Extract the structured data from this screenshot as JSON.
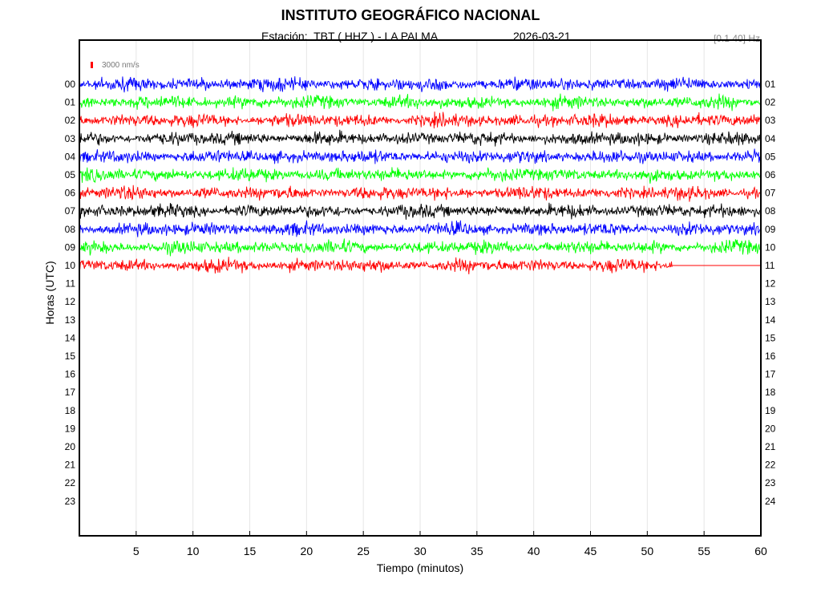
{
  "title": "INSTITUTO GEOGRÁFICO NACIONAL",
  "station_label": "Estación:  TBT ( HHZ ) - LA PALMA",
  "date": "2026-03-21",
  "filter_label": "[0.1 40] Hz",
  "scale_label": "3000 nm/s",
  "colors": {
    "blue": "#0000ff",
    "green": "#00ff00",
    "red": "#ff0000",
    "black": "#000000",
    "grid": "#e6e6e6",
    "scale": "#ff0000"
  },
  "chart_data": {
    "type": "line",
    "title": "INSTITUTO GEOGRÁFICO NACIONAL",
    "xlabel": "Tiempo (minutos)",
    "ylabel": "Horas (UTC)",
    "xlim": [
      0,
      60
    ],
    "x_ticks": [
      "5",
      "10",
      "15",
      "20",
      "25",
      "30",
      "35",
      "40",
      "45",
      "50",
      "55",
      "60"
    ],
    "left_ticks": [
      "00",
      "01",
      "02",
      "03",
      "04",
      "05",
      "06",
      "07",
      "08",
      "09",
      "10",
      "11",
      "12",
      "13",
      "14",
      "15",
      "16",
      "17",
      "18",
      "19",
      "20",
      "21",
      "22",
      "23"
    ],
    "right_ticks": [
      "01",
      "02",
      "03",
      "04",
      "05",
      "06",
      "07",
      "08",
      "09",
      "10",
      "11",
      "12",
      "13",
      "14",
      "15",
      "16",
      "17",
      "18",
      "19",
      "20",
      "21",
      "22",
      "23",
      "24"
    ],
    "grid": true,
    "scale_nm_s": 3000,
    "series": [
      {
        "hour": "00",
        "color": "blue",
        "end_minute": 60,
        "amplitude": "moderate"
      },
      {
        "hour": "01",
        "color": "green",
        "end_minute": 60,
        "amplitude": "moderate"
      },
      {
        "hour": "02",
        "color": "red",
        "end_minute": 60,
        "amplitude": "moderate"
      },
      {
        "hour": "03",
        "color": "black",
        "end_minute": 60,
        "amplitude": "moderate"
      },
      {
        "hour": "04",
        "color": "blue",
        "end_minute": 60,
        "amplitude": "moderate"
      },
      {
        "hour": "05",
        "color": "green",
        "end_minute": 60,
        "amplitude": "moderate"
      },
      {
        "hour": "06",
        "color": "red",
        "end_minute": 60,
        "amplitude": "moderate"
      },
      {
        "hour": "07",
        "color": "black",
        "end_minute": 60,
        "amplitude": "moderate"
      },
      {
        "hour": "08",
        "color": "blue",
        "end_minute": 60,
        "amplitude": "moderate"
      },
      {
        "hour": "09",
        "color": "green",
        "end_minute": 60,
        "amplitude": "moderate"
      },
      {
        "hour": "10",
        "color": "red",
        "end_minute": 52.2,
        "amplitude": "moderate"
      }
    ]
  }
}
